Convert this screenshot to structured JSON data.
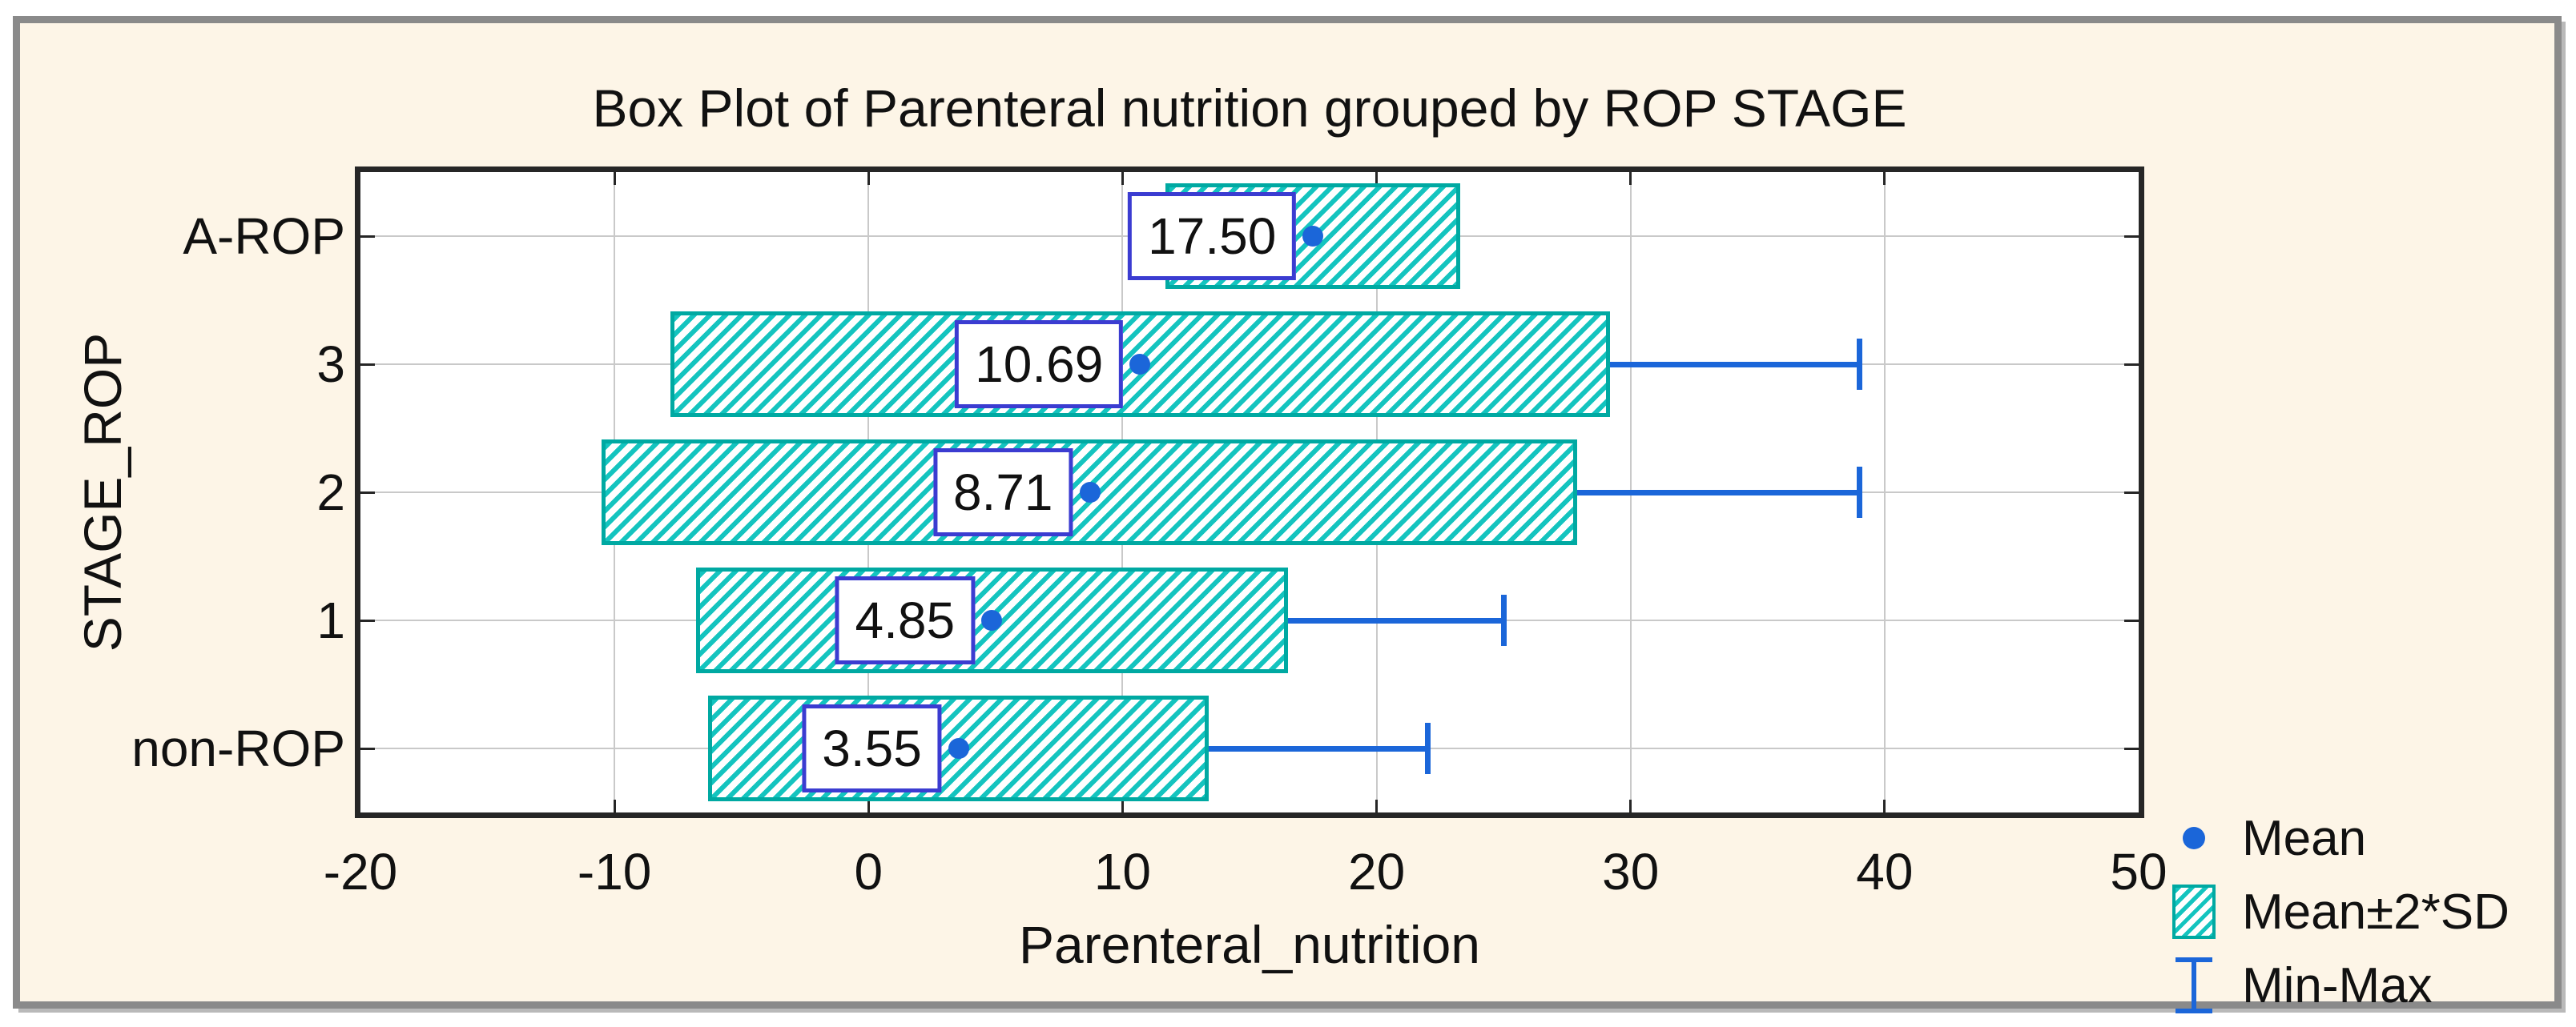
{
  "window": {
    "background_color": "#fdf5e7",
    "frame_color": "#8a8a8a"
  },
  "chart_data": {
    "type": "boxplot",
    "orientation": "horizontal",
    "title": "Box Plot of Parenteral nutrition grouped by ROP STAGE",
    "xlabel": "Parenteral_nutrition",
    "ylabel": "STAGE_ROP",
    "x_axis": {
      "min": -20,
      "max": 50,
      "ticks": [
        -20,
        -10,
        0,
        10,
        20,
        30,
        40,
        50
      ]
    },
    "categories": [
      "A-ROP",
      "3",
      "2",
      "1",
      "non-ROP"
    ],
    "rows": [
      {
        "category": "A-ROP",
        "mean": 17.5,
        "mean_label": "17.50",
        "box_low": 11.7,
        "box_high": 23.3,
        "whisker_min": null,
        "whisker_max": null
      },
      {
        "category": "3",
        "mean": 10.69,
        "mean_label": "10.69",
        "box_low": -7.8,
        "box_high": 29.2,
        "whisker_min": null,
        "whisker_max": 39
      },
      {
        "category": "2",
        "mean": 8.71,
        "mean_label": "8.71",
        "box_low": -10.5,
        "box_high": 27.9,
        "whisker_min": null,
        "whisker_max": 39
      },
      {
        "category": "1",
        "mean": 4.85,
        "mean_label": "4.85",
        "box_low": -6.8,
        "box_high": 16.5,
        "whisker_min": null,
        "whisker_max": 25
      },
      {
        "category": "non-ROP",
        "mean": 3.55,
        "mean_label": "3.55",
        "box_low": -6.3,
        "box_high": 13.4,
        "whisker_min": null,
        "whisker_max": 22
      }
    ],
    "box_meaning": "Mean±2*SD",
    "whisker_meaning": "Min-Max",
    "point_meaning": "Mean",
    "grid": true,
    "legend_position": "bottom-right",
    "legend": [
      {
        "marker": "mean-dot",
        "label": "Mean"
      },
      {
        "marker": "box-swatch",
        "label": "Mean±2*SD"
      },
      {
        "marker": "minmax-whisker",
        "label": "Min-Max"
      }
    ],
    "colors": {
      "background": "#fdf5e7",
      "frame": "#8a8a8a",
      "plot_border": "#262626",
      "grid": "#c9c9c9",
      "text": "#111111",
      "box_stripe": "#14c4bf",
      "box_border": "#00a9a2",
      "blue": "#1b66d9",
      "label_box_border": "#3b3cd1"
    }
  }
}
